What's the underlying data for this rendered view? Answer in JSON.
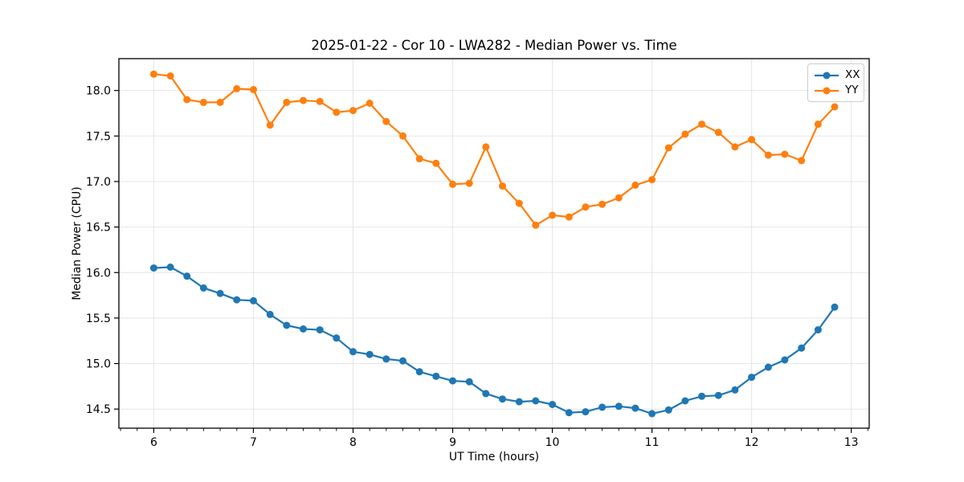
{
  "chart_data": {
    "type": "line",
    "title": "2025-01-22 - Cor 10 - LWA282 - Median Power vs. Time",
    "xlabel": "UT Time (hours)",
    "ylabel": "Median Power (CPU)",
    "xlim": [
      5.65,
      13.18
    ],
    "ylim": [
      14.29,
      18.35
    ],
    "x_ticks": [
      6,
      7,
      8,
      9,
      10,
      11,
      12,
      13
    ],
    "y_ticks": [
      14.5,
      15.0,
      15.5,
      16.0,
      16.5,
      17.0,
      17.5,
      18.0
    ],
    "x_minor_step": 0.166667,
    "grid": true,
    "grid_color": "#e5e5e5",
    "legend_position": "upper right",
    "x": [
      6.0,
      6.167,
      6.333,
      6.5,
      6.667,
      6.833,
      7.0,
      7.167,
      7.333,
      7.5,
      7.667,
      7.833,
      8.0,
      8.167,
      8.333,
      8.5,
      8.667,
      8.833,
      9.0,
      9.167,
      9.333,
      9.5,
      9.667,
      9.833,
      10.0,
      10.167,
      10.333,
      10.5,
      10.667,
      10.833,
      11.0,
      11.167,
      11.333,
      11.5,
      11.667,
      11.833,
      12.0,
      12.167,
      12.333,
      12.5,
      12.667,
      12.833
    ],
    "series": [
      {
        "name": "XX",
        "color": "#1f77b4",
        "values": [
          16.05,
          16.06,
          15.96,
          15.83,
          15.77,
          15.7,
          15.69,
          15.54,
          15.42,
          15.38,
          15.37,
          15.28,
          15.13,
          15.1,
          15.05,
          15.03,
          14.91,
          14.86,
          14.81,
          14.8,
          14.67,
          14.61,
          14.58,
          14.59,
          14.55,
          14.46,
          14.47,
          14.52,
          14.53,
          14.51,
          14.45,
          14.49,
          14.59,
          14.64,
          14.65,
          14.71,
          14.85,
          14.96,
          15.04,
          15.17,
          15.37,
          15.62
        ]
      },
      {
        "name": "YY",
        "color": "#ff7f0e",
        "values": [
          18.18,
          18.16,
          17.9,
          17.87,
          17.87,
          18.02,
          18.01,
          17.62,
          17.87,
          17.89,
          17.88,
          17.76,
          17.78,
          17.86,
          17.66,
          17.5,
          17.25,
          17.2,
          16.97,
          16.98,
          17.38,
          16.95,
          16.76,
          16.52,
          16.63,
          16.61,
          16.72,
          16.75,
          16.82,
          16.96,
          17.02,
          17.37,
          17.52,
          17.63,
          17.54,
          17.38,
          17.46,
          17.29,
          17.3,
          17.23,
          17.63,
          17.82
        ]
      }
    ]
  }
}
